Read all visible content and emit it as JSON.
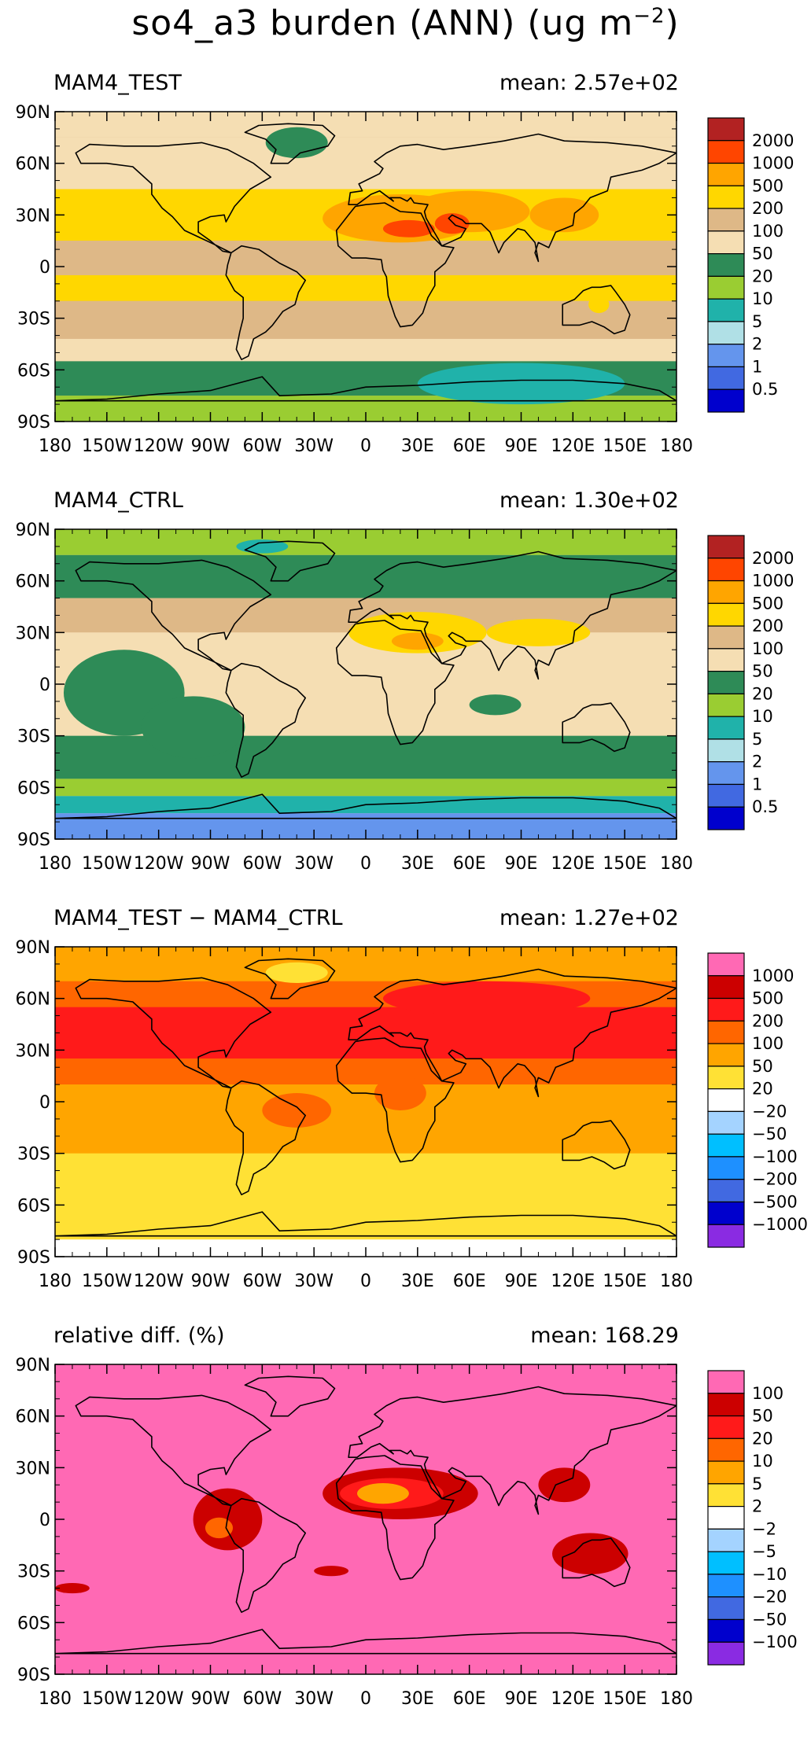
{
  "title": {
    "prefix": "so4_a3 burden (ANN) (ug m",
    "sup": "−2",
    "suffix": ")"
  },
  "axes": {
    "lat_ticks": [
      "90N",
      "60N",
      "30N",
      "0",
      "30S",
      "60S",
      "90S"
    ],
    "lon_ticks": [
      "180",
      "150W",
      "120W",
      "90W",
      "60W",
      "30W",
      "0",
      "30E",
      "60E",
      "90E",
      "120E",
      "150E",
      "180"
    ]
  },
  "panels": [
    {
      "title": "MAM4_TEST",
      "mean": "mean: 2.57e+02",
      "colorbar": {
        "colors": [
          "#b22222",
          "#ff4500",
          "#ffa500",
          "#ffd700",
          "#deb887",
          "#f5deb3",
          "#2e8b57",
          "#9acd32",
          "#20b2aa",
          "#b0e0e6",
          "#6495ed",
          "#4169e1",
          "#0000cd"
        ],
        "labels": [
          "2000",
          "1000",
          "500",
          "200",
          "100",
          "50",
          "20",
          "10",
          "5",
          "2",
          "1",
          "0.5"
        ]
      },
      "map": {
        "background": "#deb887",
        "bands": [
          {
            "lat": [
              90,
              75
            ],
            "color": "#f5deb3"
          },
          {
            "lat": [
              75,
              45
            ],
            "color": "#f5deb3"
          },
          {
            "lat": [
              45,
              15
            ],
            "color": "#ffd700"
          },
          {
            "lat": [
              15,
              -5
            ],
            "color": "#deb887"
          },
          {
            "lat": [
              -5,
              -20
            ],
            "color": "#ffd700"
          },
          {
            "lat": [
              -20,
              -42
            ],
            "color": "#deb887"
          },
          {
            "lat": [
              -42,
              -55
            ],
            "color": "#f5deb3"
          },
          {
            "lat": [
              -55,
              -75
            ],
            "color": "#2e8b57"
          },
          {
            "lat": [
              -75,
              -90
            ],
            "color": "#9acd32"
          }
        ],
        "blobs": [
          {
            "lon": 20,
            "lat": 28,
            "rx": 45,
            "ry": 14,
            "color": "#ffa500"
          },
          {
            "lon": 60,
            "lat": 32,
            "rx": 35,
            "ry": 12,
            "color": "#ffa500"
          },
          {
            "lon": 25,
            "lat": 22,
            "rx": 15,
            "ry": 5,
            "color": "#ff4500"
          },
          {
            "lon": 50,
            "lat": 25,
            "rx": 10,
            "ry": 6,
            "color": "#ff4500"
          },
          {
            "lon": 115,
            "lat": 30,
            "rx": 20,
            "ry": 10,
            "color": "#ffa500"
          },
          {
            "lon": -40,
            "lat": 72,
            "rx": 18,
            "ry": 9,
            "color": "#2e8b57"
          },
          {
            "lon": 90,
            "lat": -68,
            "rx": 60,
            "ry": 12,
            "color": "#20b2aa"
          },
          {
            "lon": 135,
            "lat": -22,
            "rx": 6,
            "ry": 5,
            "color": "#ffd700"
          }
        ]
      }
    },
    {
      "title": "MAM4_CTRL",
      "mean": "mean: 1.30e+02",
      "colorbar": {
        "colors": [
          "#b22222",
          "#ff4500",
          "#ffa500",
          "#ffd700",
          "#deb887",
          "#f5deb3",
          "#2e8b57",
          "#9acd32",
          "#20b2aa",
          "#b0e0e6",
          "#6495ed",
          "#4169e1",
          "#0000cd"
        ],
        "labels": [
          "2000",
          "1000",
          "500",
          "200",
          "100",
          "50",
          "20",
          "10",
          "5",
          "2",
          "1",
          "0.5"
        ]
      },
      "map": {
        "background": "#f5deb3",
        "bands": [
          {
            "lat": [
              90,
              75
            ],
            "color": "#9acd32"
          },
          {
            "lat": [
              75,
              50
            ],
            "color": "#2e8b57"
          },
          {
            "lat": [
              50,
              30
            ],
            "color": "#deb887"
          },
          {
            "lat": [
              30,
              -30
            ],
            "color": "#f5deb3"
          },
          {
            "lat": [
              -30,
              -55
            ],
            "color": "#2e8b57"
          },
          {
            "lat": [
              -55,
              -65
            ],
            "color": "#9acd32"
          },
          {
            "lat": [
              -65,
              -75
            ],
            "color": "#20b2aa"
          },
          {
            "lat": [
              -75,
              -90
            ],
            "color": "#6495ed"
          }
        ],
        "blobs": [
          {
            "lon": -140,
            "lat": -5,
            "rx": 35,
            "ry": 25,
            "color": "#2e8b57"
          },
          {
            "lon": -100,
            "lat": -25,
            "rx": 30,
            "ry": 18,
            "color": "#2e8b57"
          },
          {
            "lon": 75,
            "lat": -12,
            "rx": 15,
            "ry": 6,
            "color": "#2e8b57"
          },
          {
            "lon": 30,
            "lat": 30,
            "rx": 40,
            "ry": 12,
            "color": "#ffd700"
          },
          {
            "lon": 100,
            "lat": 30,
            "rx": 30,
            "ry": 8,
            "color": "#ffd700"
          },
          {
            "lon": 30,
            "lat": 25,
            "rx": 15,
            "ry": 5,
            "color": "#ffa500"
          },
          {
            "lon": -60,
            "lat": 80,
            "rx": 15,
            "ry": 4,
            "color": "#20b2aa"
          }
        ]
      }
    },
    {
      "title": "MAM4_TEST − MAM4_CTRL",
      "mean": "mean: 1.27e+02",
      "colorbar": {
        "colors": [
          "#ff69b4",
          "#cc0000",
          "#ff1a1a",
          "#ff6600",
          "#ffa500",
          "#ffe135",
          "#ffffff",
          "#a4d3ff",
          "#00bfff",
          "#1e90ff",
          "#4169e1",
          "#0000cd",
          "#8a2be2"
        ],
        "labels": [
          "1000",
          "500",
          "200",
          "100",
          "50",
          "20",
          "−20",
          "−50",
          "−100",
          "−200",
          "−500",
          "−1000"
        ]
      },
      "map": {
        "background": "#ffa500",
        "bands": [
          {
            "lat": [
              90,
              70
            ],
            "color": "#ffa500"
          },
          {
            "lat": [
              70,
              55
            ],
            "color": "#ff6600"
          },
          {
            "lat": [
              55,
              25
            ],
            "color": "#ff1a1a"
          },
          {
            "lat": [
              25,
              10
            ],
            "color": "#ff6600"
          },
          {
            "lat": [
              10,
              -30
            ],
            "color": "#ffa500"
          },
          {
            "lat": [
              -30,
              -80
            ],
            "color": "#ffe135"
          },
          {
            "lat": [
              -80,
              -90
            ],
            "color": "#ffffff"
          }
        ],
        "blobs": [
          {
            "lon": -40,
            "lat": 75,
            "rx": 18,
            "ry": 6,
            "color": "#ffe135"
          },
          {
            "lon": 70,
            "lat": 60,
            "rx": 60,
            "ry": 10,
            "color": "#ff1a1a"
          },
          {
            "lon": -40,
            "lat": -5,
            "rx": 20,
            "ry": 10,
            "color": "#ff6600"
          },
          {
            "lon": 20,
            "lat": 5,
            "rx": 15,
            "ry": 10,
            "color": "#ff6600"
          }
        ]
      }
    },
    {
      "title": "relative diff. (%)",
      "mean": "mean: 168.29",
      "colorbar": {
        "colors": [
          "#ff69b4",
          "#cc0000",
          "#ff1a1a",
          "#ff6600",
          "#ffa500",
          "#ffe135",
          "#ffffff",
          "#a4d3ff",
          "#00bfff",
          "#1e90ff",
          "#4169e1",
          "#0000cd",
          "#8a2be2"
        ],
        "labels": [
          "100",
          "50",
          "20",
          "10",
          "5",
          "2",
          "−2",
          "−5",
          "−10",
          "−20",
          "−50",
          "−100"
        ]
      },
      "map": {
        "background": "#ff69b4",
        "bands": [],
        "blobs": [
          {
            "lon": 20,
            "lat": 15,
            "rx": 45,
            "ry": 15,
            "color": "#cc0000"
          },
          {
            "lon": 15,
            "lat": 15,
            "rx": 30,
            "ry": 9,
            "color": "#ff1a1a"
          },
          {
            "lon": 10,
            "lat": 15,
            "rx": 15,
            "ry": 6,
            "color": "#ffa500"
          },
          {
            "lon": -80,
            "lat": 0,
            "rx": 20,
            "ry": 18,
            "color": "#cc0000"
          },
          {
            "lon": -85,
            "lat": -5,
            "rx": 8,
            "ry": 6,
            "color": "#ff6600"
          },
          {
            "lon": 130,
            "lat": -20,
            "rx": 22,
            "ry": 12,
            "color": "#cc0000"
          },
          {
            "lon": 115,
            "lat": 20,
            "rx": 15,
            "ry": 10,
            "color": "#cc0000"
          },
          {
            "lon": -20,
            "lat": -30,
            "rx": 10,
            "ry": 3,
            "color": "#cc0000"
          },
          {
            "lon": -170,
            "lat": -40,
            "rx": 10,
            "ry": 3,
            "color": "#cc0000"
          }
        ]
      }
    }
  ]
}
